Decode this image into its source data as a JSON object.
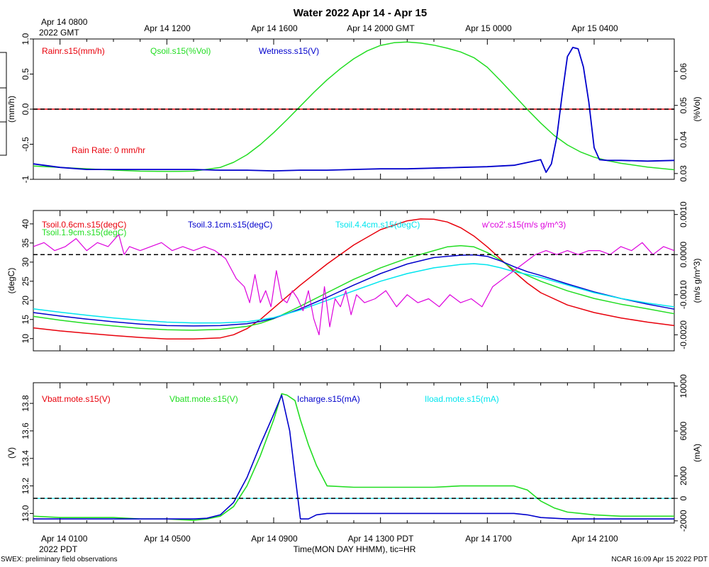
{
  "figure": {
    "title": "Water 2022 Apr 14 - Apr 15",
    "gmt_tick_labels": [
      "Apr 14 0800",
      "2022 GMT",
      "Apr 14 1200",
      "Apr 14 1600",
      "Apr 14 2000 GMT",
      "Apr 15 0000",
      "Apr 15 0400"
    ],
    "pdt_tick_labels": [
      "Apr 14 0100",
      "2022 PDT",
      "Apr 14 0500",
      "Apr 14 0900",
      "Apr 14 1300 PDT",
      "Apr 14 1700",
      "Apr 14 2100"
    ],
    "xlabel": "Time(MON DAY HHMM), tic=HR",
    "footer_left": "SWEX: preliminary field observations",
    "footer_right": "NCAR 16:09 Apr 15 2022 PDT",
    "colors": {
      "red": "#e8000b",
      "green": "#22dd22",
      "blue": "#0000cc",
      "cyan": "#00e5ee",
      "magenta": "#dd00dd",
      "black": "#000000"
    }
  },
  "chart_data": [
    {
      "type": "line",
      "title": "Water 2022 Apr 14 - Apr 15",
      "x_unit": "hours since Apr 14 0000 PDT",
      "xlim": [
        0,
        24
      ],
      "left_axis": {
        "label": "(mm/h)",
        "ylim": [
          -1.0,
          1.0
        ],
        "ticks": [
          -1.0,
          -0.5,
          0.0,
          0.5,
          1.0
        ],
        "tick_labels": [
          "-1",
          "-0.5",
          "0.0",
          "0.5",
          "1.0"
        ]
      },
      "right_axis": {
        "label": "(%Vol)",
        "ylim": [
          0.0283,
          0.0695
        ],
        "ticks": [
          0.03,
          0.04,
          0.05,
          0.06
        ],
        "tick_labels": [
          "0.03",
          "0.04",
          "0.05",
          "0.06"
        ]
      },
      "legend": [
        "Rainr.s15(mm/h)",
        "Qsoil.s15(%Vol)",
        "Wetness.s15(V)"
      ],
      "annotation": "Rain Rate: 0 mm/hr",
      "series": [
        {
          "name": "Rainr.s15(mm/h)",
          "axis": "left",
          "x": [
            0,
            24
          ],
          "y": [
            0.0,
            0.0
          ]
        },
        {
          "name": "Qsoil.s15(%Vol)",
          "axis": "right",
          "x": [
            0,
            1,
            2,
            3,
            4,
            5,
            6,
            7,
            7.5,
            8,
            8.5,
            9,
            9.5,
            10,
            10.5,
            11,
            11.5,
            12,
            12.5,
            13,
            13.5,
            14,
            14.5,
            15,
            15.5,
            16,
            16.5,
            17,
            17.5,
            18,
            18.5,
            19,
            19.5,
            20,
            20.5,
            21,
            21.5,
            22,
            23,
            24
          ],
          "y": [
            0.0322,
            0.0318,
            0.0314,
            0.031,
            0.0307,
            0.0306,
            0.0307,
            0.0318,
            0.0333,
            0.0355,
            0.0385,
            0.042,
            0.0458,
            0.0498,
            0.0538,
            0.0575,
            0.0608,
            0.0637,
            0.066,
            0.0676,
            0.0684,
            0.0686,
            0.0683,
            0.0677,
            0.0668,
            0.0657,
            0.064,
            0.0612,
            0.0572,
            0.053,
            0.0488,
            0.0448,
            0.0412,
            0.0384,
            0.0363,
            0.0348,
            0.0338,
            0.033,
            0.0319,
            0.0311
          ]
        },
        {
          "name": "Wetness.s15",
          "axis": "left",
          "x": [
            0,
            1,
            2,
            3,
            4,
            5,
            6,
            7,
            8,
            9,
            10,
            11,
            12,
            13,
            14,
            15,
            16,
            17,
            18,
            18.5,
            19,
            19.2,
            19.4,
            19.6,
            19.8,
            20,
            20.2,
            20.4,
            20.6,
            20.8,
            21,
            21.2,
            21.5,
            22,
            23,
            24
          ],
          "y": [
            -0.78,
            -0.83,
            -0.86,
            -0.86,
            -0.86,
            -0.86,
            -0.86,
            -0.87,
            -0.87,
            -0.88,
            -0.87,
            -0.87,
            -0.86,
            -0.85,
            -0.85,
            -0.84,
            -0.83,
            -0.82,
            -0.8,
            -0.76,
            -0.72,
            -0.9,
            -0.78,
            -0.4,
            0.2,
            0.75,
            0.88,
            0.86,
            0.6,
            0.1,
            -0.55,
            -0.72,
            -0.73,
            -0.73,
            -0.74,
            -0.73
          ]
        }
      ]
    },
    {
      "type": "line",
      "title": "",
      "x_unit": "hours since Apr 14 0000 PDT",
      "xlim": [
        0,
        24
      ],
      "left_axis": {
        "label": "(degC)",
        "ylim": [
          6.8,
          43.5
        ],
        "ticks": [
          10,
          15,
          20,
          25,
          30,
          35,
          40
        ],
        "tick_labels": [
          "10",
          "15",
          "20",
          "25",
          "30",
          "35",
          "40"
        ]
      },
      "right_axis": {
        "label": "(m/s g/m^3)",
        "ylim": [
          -0.0024,
          0.0011
        ],
        "ticks": [
          -0.002,
          -0.001,
          0.0,
          0.001
        ],
        "tick_labels": [
          "-0.0020",
          "-0.0010",
          "0.0000",
          "0.0010"
        ]
      },
      "legend": [
        "Tsoil.0.6cm.s15(degC)",
        "Tsoil.1.9cm.s15(degC)",
        "Tsoil.3.1cm.s15(degC)",
        "Tsoil.4.4cm.s15(degC)",
        "w'co2'.s15(m/s g/m^3)"
      ],
      "series": [
        {
          "name": "Tsoil.0.6cm.s15(degC)",
          "axis": "left",
          "x": [
            0,
            1,
            2,
            3,
            4,
            5,
            6,
            7,
            7.5,
            8,
            8.5,
            9,
            9.5,
            10,
            11,
            12,
            13,
            14,
            14.5,
            15,
            15.5,
            16,
            16.5,
            17,
            17.5,
            18,
            18.5,
            19,
            20,
            21,
            22,
            23,
            24
          ],
          "y": [
            12.8,
            12.0,
            11.4,
            10.8,
            10.3,
            9.9,
            9.9,
            10.2,
            11.0,
            12.6,
            15.0,
            18.0,
            21.0,
            24.0,
            29.5,
            34.5,
            38.5,
            40.8,
            41.3,
            41.2,
            40.5,
            39.0,
            36.8,
            34.0,
            30.8,
            27.5,
            24.5,
            22.0,
            18.8,
            16.8,
            15.4,
            14.3,
            13.4
          ]
        },
        {
          "name": "Tsoil.1.9cm.s15(degC)",
          "axis": "left",
          "x": [
            0,
            1,
            2,
            3,
            4,
            5,
            6,
            7,
            8,
            8.5,
            9,
            9.5,
            10,
            11,
            12,
            13,
            14,
            15,
            15.5,
            16,
            16.5,
            17,
            17.5,
            18,
            18.5,
            19,
            20,
            21,
            22,
            23,
            24
          ],
          "y": [
            15.8,
            14.8,
            14.0,
            13.3,
            12.7,
            12.3,
            12.2,
            12.4,
            13.2,
            14.0,
            15.2,
            16.8,
            18.5,
            22.0,
            25.5,
            28.5,
            31.0,
            33.0,
            34.0,
            34.3,
            34.0,
            32.5,
            30.5,
            28.0,
            26.5,
            25.0,
            22.5,
            20.5,
            19.0,
            17.8,
            16.5
          ]
        },
        {
          "name": "Tsoil.3.1cm.s15(degC)",
          "axis": "left",
          "x": [
            0,
            1,
            2,
            3,
            4,
            5,
            6,
            7,
            8,
            8.5,
            9,
            9.5,
            10,
            11,
            12,
            13,
            14,
            15,
            16,
            16.5,
            17,
            17.5,
            18,
            18.5,
            19,
            20,
            21,
            22,
            23,
            24
          ],
          "y": [
            16.8,
            15.9,
            15.1,
            14.4,
            13.8,
            13.4,
            13.3,
            13.4,
            13.9,
            14.5,
            15.3,
            16.5,
            17.8,
            20.8,
            24.0,
            27.0,
            29.5,
            31.2,
            31.8,
            31.9,
            31.5,
            30.3,
            28.8,
            27.5,
            26.5,
            24.3,
            22.2,
            20.5,
            19.0,
            17.7
          ]
        },
        {
          "name": "Tsoil.4.4cm.s15(degC)",
          "axis": "left",
          "x": [
            0,
            1,
            2,
            3,
            4,
            5,
            6,
            7,
            8,
            8.5,
            9,
            9.5,
            10,
            11,
            12,
            13,
            14,
            15,
            16,
            16.5,
            17,
            17.5,
            18,
            18.5,
            19,
            20,
            21,
            22,
            23,
            24
          ],
          "y": [
            17.8,
            16.9,
            16.1,
            15.4,
            14.8,
            14.3,
            14.1,
            14.1,
            14.4,
            14.9,
            15.5,
            16.5,
            17.5,
            20.0,
            22.5,
            25.0,
            27.0,
            28.5,
            29.4,
            29.6,
            29.3,
            28.5,
            27.5,
            26.8,
            26.0,
            24.0,
            22.0,
            20.5,
            19.3,
            18.3
          ]
        },
        {
          "name": "w'co2'.s15(m/s g/m^3)",
          "axis": "right",
          "x": [
            0,
            0.4,
            0.8,
            1.2,
            1.6,
            2.0,
            2.4,
            2.8,
            3.2,
            3.4,
            3.6,
            4.0,
            4.4,
            4.8,
            5.2,
            5.6,
            6.0,
            6.4,
            6.8,
            7.2,
            7.6,
            7.9,
            8.1,
            8.3,
            8.5,
            8.7,
            8.9,
            9.1,
            9.3,
            9.5,
            9.7,
            9.9,
            10.1,
            10.3,
            10.5,
            10.7,
            10.9,
            11.1,
            11.3,
            11.5,
            11.7,
            11.9,
            12.1,
            12.4,
            12.8,
            13.2,
            13.6,
            14.0,
            14.4,
            14.8,
            15.2,
            15.6,
            16.0,
            16.4,
            16.8,
            17.2,
            17.6,
            18.0,
            18.4,
            18.8,
            19.2,
            19.6,
            20.0,
            20.4,
            20.8,
            21.2,
            21.6,
            22.0,
            22.4,
            22.8,
            23.2,
            23.6,
            24.0
          ],
          "y": [
            0.0002,
            0.0003,
            0.0001,
            0.0002,
            0.0004,
            0.0001,
            0.0003,
            0.0002,
            0.0005,
            0.0,
            0.0002,
            0.0001,
            0.0002,
            0.0003,
            0.0001,
            0.0002,
            0.0001,
            0.0002,
            0.0001,
            -0.0001,
            -0.0006,
            -0.0008,
            -0.0012,
            -0.0005,
            -0.0012,
            -0.0009,
            -0.0013,
            -0.0004,
            -0.0011,
            -0.0012,
            -0.0009,
            -0.0011,
            -0.0014,
            -0.0009,
            -0.0016,
            -0.002,
            -0.0008,
            -0.0018,
            -0.0011,
            -0.0013,
            -0.0009,
            -0.0015,
            -0.001,
            -0.0012,
            -0.0011,
            -0.0009,
            -0.0013,
            -0.001,
            -0.0012,
            -0.0011,
            -0.0013,
            -0.001,
            -0.0012,
            -0.0011,
            -0.0013,
            -0.0008,
            -0.0006,
            -0.0004,
            -0.0002,
            0.0,
            0.0001,
            0.0,
            0.0001,
            0.0,
            0.0001,
            0.0001,
            0.0,
            0.0002,
            0.0001,
            0.0003,
            0.0,
            0.0002,
            0.0001
          ]
        }
      ]
    },
    {
      "type": "line",
      "title": "",
      "x_unit": "hours since Apr 14 0000 PDT",
      "xlim": [
        0,
        24
      ],
      "left_axis": {
        "label": "(V)",
        "ylim": [
          12.93,
          13.95
        ],
        "ticks": [
          13.0,
          13.2,
          13.4,
          13.6,
          13.8
        ],
        "tick_labels": [
          "13.0",
          "13.2",
          "13.4",
          "13.6",
          "13.8"
        ]
      },
      "right_axis": {
        "label": "(mA)",
        "ylim": [
          -2200,
          10300
        ],
        "ticks": [
          -2000,
          0,
          2000,
          6000,
          10000
        ],
        "tick_labels": [
          "-2000",
          "0",
          "2000",
          "6000",
          "10000"
        ]
      },
      "legend": [
        "Vbatt.mote.s15(V)",
        "Vbatt.mote.s15(V)",
        "Icharge.s15(mA)",
        "Iload.mote.s15(mA)"
      ],
      "series": [
        {
          "name": "Vbatt.mote.s15(V)",
          "axis": "left",
          "x": [
            0,
            1,
            2,
            3,
            4,
            5,
            6,
            6.5,
            7,
            7.5,
            8,
            8.5,
            9,
            9.3,
            9.5,
            9.8,
            10,
            10.3,
            10.6,
            11,
            12,
            13,
            14,
            15,
            16,
            17,
            18,
            18.5,
            19,
            19.5,
            20,
            20.5,
            21,
            22,
            23,
            24
          ],
          "y": [
            12.98,
            12.97,
            12.97,
            12.97,
            12.96,
            12.96,
            12.95,
            12.96,
            12.98,
            13.05,
            13.2,
            13.42,
            13.68,
            13.87,
            13.86,
            13.82,
            13.68,
            13.5,
            13.35,
            13.2,
            13.19,
            13.19,
            13.19,
            13.19,
            13.2,
            13.2,
            13.2,
            13.17,
            13.09,
            13.04,
            13.01,
            13.0,
            12.99,
            12.98,
            12.98,
            12.98
          ]
        },
        {
          "name": "Icharge.s15(mA)",
          "axis": "left",
          "x": [
            0,
            1,
            2,
            3,
            4,
            5,
            6,
            6.5,
            7,
            7.5,
            8,
            8.5,
            9,
            9.3,
            9.6,
            9.8,
            10,
            10.3,
            10.6,
            11,
            12,
            13,
            14,
            15,
            16,
            17,
            18,
            18.5,
            19,
            20,
            21,
            22,
            23,
            24
          ],
          "y": [
            12.96,
            12.96,
            12.96,
            12.96,
            12.96,
            12.96,
            12.96,
            12.965,
            12.99,
            13.08,
            13.26,
            13.5,
            13.72,
            13.86,
            13.6,
            13.28,
            12.96,
            12.96,
            12.99,
            13.0,
            13.0,
            13.0,
            13.0,
            13.0,
            13.0,
            13.0,
            13.0,
            12.99,
            12.97,
            12.96,
            12.96,
            12.96,
            12.96,
            12.96
          ]
        },
        {
          "name": "Iload.mote.s15(mA)",
          "axis": "right",
          "x": [
            0,
            24
          ],
          "y": [
            0,
            0
          ]
        }
      ]
    }
  ]
}
